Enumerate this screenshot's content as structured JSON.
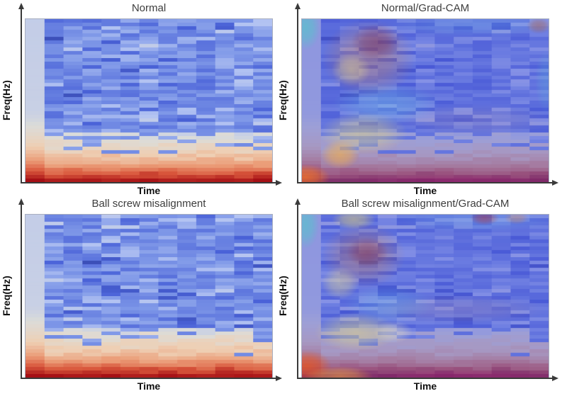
{
  "figure": {
    "background": "#ffffff",
    "title_color": "#3d3d3d",
    "axis_color": "#3a3a3a",
    "axis_label_color": "#111111"
  },
  "chart_data": [
    {
      "type": "heatmap",
      "panel": "top-left",
      "title": "Normal",
      "xlabel": "Time",
      "ylabel": "Freq(Hz)",
      "axes": {
        "x_ticks": "none",
        "y_ticks": "none",
        "x_arrow": true,
        "y_arrow": true
      },
      "grid": {
        "cols": 13,
        "rows": 46
      },
      "seed": 1337,
      "colormap": "coolwarm",
      "colormap_stops": [
        [
          0,
          "#31409f"
        ],
        [
          0.1,
          "#4a62d8"
        ],
        [
          0.3,
          "#8099e8"
        ],
        [
          0.45,
          "#b3c3f2"
        ],
        [
          0.55,
          "#dcdcd8"
        ],
        [
          0.68,
          "#eecfb4"
        ],
        [
          0.8,
          "#eb9c77"
        ],
        [
          0.9,
          "#d9573c"
        ],
        [
          1,
          "#a50f15"
        ]
      ],
      "value_zones": {
        "upper_blue_band": [
          0.06,
          0.47
        ],
        "warm_transition_start": 0.7,
        "bottom_red_band": [
          0.7,
          1.0
        ],
        "left_column_neutral": 0.5
      },
      "gradcam": null
    },
    {
      "type": "heatmap",
      "panel": "top-right",
      "title": "Normal/Grad-CAM",
      "xlabel": "Time",
      "ylabel": "Freq(Hz)",
      "axes": {
        "x_ticks": "none",
        "y_ticks": "none",
        "x_arrow": true,
        "y_arrow": true
      },
      "grid": {
        "cols": 13,
        "rows": 46
      },
      "seed": 1337,
      "colormap": "coolwarm",
      "colormap_stops": [
        [
          0,
          "#31409f"
        ],
        [
          0.1,
          "#4a62d8"
        ],
        [
          0.3,
          "#8099e8"
        ],
        [
          0.45,
          "#b3c3f2"
        ],
        [
          0.55,
          "#dcdcd8"
        ],
        [
          0.68,
          "#eecfb4"
        ],
        [
          0.8,
          "#eb9c77"
        ],
        [
          0.9,
          "#d9573c"
        ],
        [
          1,
          "#a50f15"
        ]
      ],
      "value_zones": {
        "upper_blue_band": [
          0.06,
          0.47
        ],
        "warm_transition_start": 0.7,
        "bottom_red_band": [
          0.7,
          1.0
        ],
        "left_column_neutral": 0.5
      },
      "gradcam": {
        "tint": {
          "color": "#4b53d6",
          "alpha": 0.44
        },
        "blobs": [
          {
            "x": 0.015,
            "y": 0.05,
            "rx": 0.06,
            "ry": 0.14,
            "color": "#3fd6c4",
            "alpha": 0.5
          },
          {
            "x": 0.7,
            "y": 0.03,
            "rx": 0.36,
            "ry": 0.08,
            "color": "#6ad0e8",
            "alpha": 0.16
          },
          {
            "x": 0.27,
            "y": 0.24,
            "rx": 0.19,
            "ry": 0.24,
            "color": "#e07b3a",
            "alpha": 0.33
          },
          {
            "x": 0.3,
            "y": 0.14,
            "rx": 0.1,
            "ry": 0.11,
            "color": "#7c1e3e",
            "alpha": 0.38
          },
          {
            "x": 0.2,
            "y": 0.31,
            "rx": 0.08,
            "ry": 0.1,
            "color": "#f6e38a",
            "alpha": 0.42
          },
          {
            "x": 0.34,
            "y": 0.52,
            "rx": 0.22,
            "ry": 0.13,
            "color": "#67d8ea",
            "alpha": 0.25
          },
          {
            "x": 0.25,
            "y": 0.7,
            "rx": 0.18,
            "ry": 0.13,
            "color": "#f2e070",
            "alpha": 0.42
          },
          {
            "x": 0.155,
            "y": 0.83,
            "rx": 0.08,
            "ry": 0.09,
            "color": "#ffb63c",
            "alpha": 0.55
          },
          {
            "x": 0.015,
            "y": 0.97,
            "rx": 0.1,
            "ry": 0.08,
            "color": "#ff7a20",
            "alpha": 0.72
          },
          {
            "x": 0.96,
            "y": 0.04,
            "rx": 0.05,
            "ry": 0.05,
            "color": "#a85a42",
            "alpha": 0.45
          },
          {
            "x": 0.99,
            "y": 0.38,
            "rx": 0.045,
            "ry": 0.2,
            "color": "#58c8d8",
            "alpha": 0.22
          },
          {
            "x": 0.7,
            "y": 0.62,
            "rx": 0.33,
            "ry": 0.1,
            "color": "#e8a080",
            "alpha": 0.12
          },
          {
            "x": 0.62,
            "y": 1.0,
            "rx": 0.46,
            "ry": 0.05,
            "color": "#a01070",
            "alpha": 0.3
          }
        ]
      }
    },
    {
      "type": "heatmap",
      "panel": "bottom-left",
      "title": "Ball screw misalignment",
      "xlabel": "Time",
      "ylabel": "Freq(Hz)",
      "axes": {
        "x_ticks": "none",
        "y_ticks": "none",
        "x_arrow": true,
        "y_arrow": true
      },
      "grid": {
        "cols": 13,
        "rows": 46
      },
      "seed": 4242,
      "colormap": "coolwarm",
      "colormap_stops": [
        [
          0,
          "#31409f"
        ],
        [
          0.1,
          "#4a62d8"
        ],
        [
          0.3,
          "#8099e8"
        ],
        [
          0.45,
          "#b3c3f2"
        ],
        [
          0.55,
          "#dcdcd8"
        ],
        [
          0.68,
          "#eecfb4"
        ],
        [
          0.8,
          "#eb9c77"
        ],
        [
          0.9,
          "#d9573c"
        ],
        [
          1,
          "#a50f15"
        ]
      ],
      "value_zones": {
        "upper_blue_band": [
          0.06,
          0.47
        ],
        "warm_transition_start": 0.7,
        "bottom_red_band": [
          0.7,
          1.0
        ],
        "left_column_neutral": 0.5
      },
      "gradcam": null
    },
    {
      "type": "heatmap",
      "panel": "bottom-right",
      "title": "Ball screw misalignment/Grad-CAM",
      "xlabel": "Time",
      "ylabel": "Freq(Hz)",
      "axes": {
        "x_ticks": "none",
        "y_ticks": "none",
        "x_arrow": true,
        "y_arrow": true
      },
      "grid": {
        "cols": 13,
        "rows": 46
      },
      "seed": 4242,
      "colormap": "coolwarm",
      "colormap_stops": [
        [
          0,
          "#31409f"
        ],
        [
          0.1,
          "#4a62d8"
        ],
        [
          0.3,
          "#8099e8"
        ],
        [
          0.45,
          "#b3c3f2"
        ],
        [
          0.55,
          "#dcdcd8"
        ],
        [
          0.68,
          "#eecfb4"
        ],
        [
          0.8,
          "#eb9c77"
        ],
        [
          0.9,
          "#d9573c"
        ],
        [
          1,
          "#a50f15"
        ]
      ],
      "value_zones": {
        "upper_blue_band": [
          0.06,
          0.47
        ],
        "warm_transition_start": 0.7,
        "bottom_red_band": [
          0.7,
          1.0
        ],
        "left_column_neutral": 0.5
      },
      "gradcam": {
        "tint": {
          "color": "#4b53d6",
          "alpha": 0.44
        },
        "blobs": [
          {
            "x": 0.015,
            "y": 0.06,
            "rx": 0.055,
            "ry": 0.15,
            "color": "#3fd6c4",
            "alpha": 0.48
          },
          {
            "x": 0.7,
            "y": 0.03,
            "rx": 0.36,
            "ry": 0.08,
            "color": "#6ad0e8",
            "alpha": 0.16
          },
          {
            "x": 0.21,
            "y": 0.03,
            "rx": 0.09,
            "ry": 0.06,
            "color": "#f2df6e",
            "alpha": 0.48
          },
          {
            "x": 0.25,
            "y": 0.25,
            "rx": 0.17,
            "ry": 0.2,
            "color": "#e07b3a",
            "alpha": 0.34
          },
          {
            "x": 0.265,
            "y": 0.23,
            "rx": 0.085,
            "ry": 0.09,
            "color": "#7c1e3e",
            "alpha": 0.38
          },
          {
            "x": 0.155,
            "y": 0.42,
            "rx": 0.075,
            "ry": 0.1,
            "color": "#f6e38a",
            "alpha": 0.4
          },
          {
            "x": 0.35,
            "y": 0.55,
            "rx": 0.18,
            "ry": 0.12,
            "color": "#67d8ea",
            "alpha": 0.2
          },
          {
            "x": 0.22,
            "y": 0.72,
            "rx": 0.17,
            "ry": 0.12,
            "color": "#f2e070",
            "alpha": 0.42
          },
          {
            "x": 0.37,
            "y": 0.72,
            "rx": 0.08,
            "ry": 0.07,
            "color": "#f6ecc0",
            "alpha": 0.38
          },
          {
            "x": 0.63,
            "y": 0.58,
            "rx": 0.38,
            "ry": 0.09,
            "color": "#e8a080",
            "alpha": 0.14
          },
          {
            "x": 0.02,
            "y": 0.93,
            "rx": 0.1,
            "ry": 0.1,
            "color": "#f05818",
            "alpha": 0.7
          },
          {
            "x": 0.15,
            "y": 0.99,
            "rx": 0.14,
            "ry": 0.06,
            "color": "#ffb63c",
            "alpha": 0.5
          },
          {
            "x": 0.74,
            "y": 0.02,
            "rx": 0.06,
            "ry": 0.045,
            "color": "#c03028",
            "alpha": 0.42
          },
          {
            "x": 0.87,
            "y": 0.02,
            "rx": 0.05,
            "ry": 0.04,
            "color": "#e08040",
            "alpha": 0.33
          },
          {
            "x": 0.65,
            "y": 1.0,
            "rx": 0.43,
            "ry": 0.05,
            "color": "#a01070",
            "alpha": 0.3
          }
        ]
      }
    }
  ]
}
